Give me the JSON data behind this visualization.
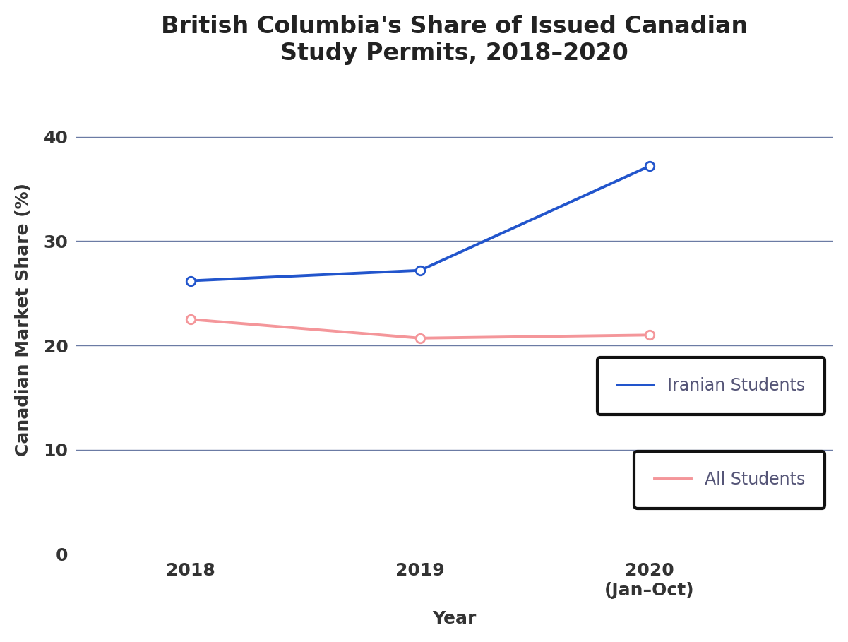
{
  "title": "British Columbia's Share of Issued Canadian\nStudy Permits, 2018–2020",
  "xlabel": "Year",
  "ylabel": "Canadian Market Share (%)",
  "years": [
    2018,
    2019,
    2020
  ],
  "x_tick_labels": [
    "2018",
    "2019",
    "2020\n(Jan–Oct)"
  ],
  "iranian_students": [
    26.2,
    27.2,
    37.2
  ],
  "all_students": [
    22.5,
    20.7,
    21.0
  ],
  "iranian_color": "#2255CC",
  "all_color": "#F4969A",
  "ylim": [
    0,
    45
  ],
  "yticks": [
    0,
    10,
    20,
    30,
    40
  ],
  "background_color": "#ffffff",
  "grid_color": "#6B7BA4",
  "title_fontsize": 24,
  "axis_label_fontsize": 18,
  "tick_fontsize": 18,
  "legend_fontsize": 17,
  "line_width": 2.8,
  "marker_size": 9
}
